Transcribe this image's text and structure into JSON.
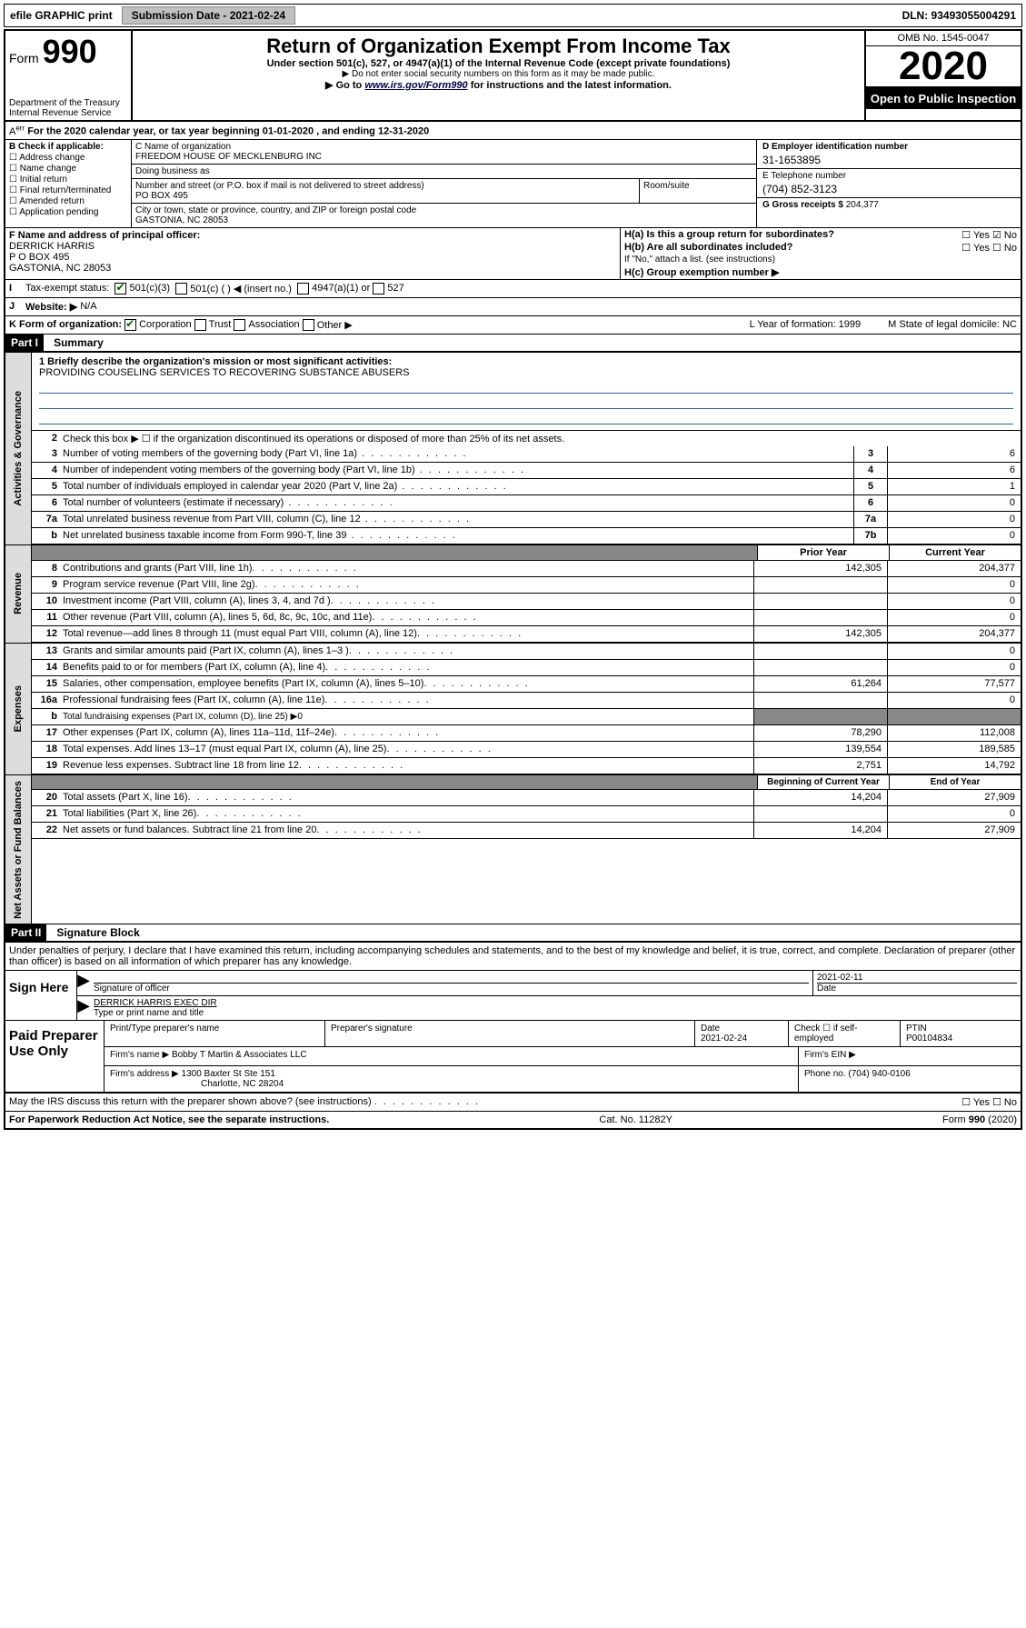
{
  "top_bar": {
    "efile": "efile GRAPHIC print",
    "sub_label": "Submission Date - 2021-02-24",
    "dln": "DLN: 93493055004291"
  },
  "header": {
    "form_label": "Form",
    "form_num": "990",
    "dept": "Department of the Treasury\nInternal Revenue Service",
    "title": "Return of Organization Exempt From Income Tax",
    "subtitle": "Under section 501(c), 527, or 4947(a)(1) of the Internal Revenue Code (except private foundations)",
    "note1": "▶ Do not enter social security numbers on this form as it may be made public.",
    "note2_pre": "▶ Go to ",
    "note2_link": "www.irs.gov/Form990",
    "note2_post": " for instructions and the latest information.",
    "omb": "OMB No. 1545-0047",
    "year": "2020",
    "open": "Open to Public Inspection"
  },
  "row_a": "For the 2020 calendar year, or tax year beginning 01-01-2020   , and ending 12-31-2020",
  "block_b": {
    "title": "B Check if applicable:",
    "items": [
      "Address change",
      "Name change",
      "Initial return",
      "Final return/terminated",
      "Amended return",
      "Application pending"
    ]
  },
  "block_c": {
    "name_label": "C Name of organization",
    "name": "FREEDOM HOUSE OF MECKLENBURG INC",
    "dba_label": "Doing business as",
    "dba": "",
    "addr_label": "Number and street (or P.O. box if mail is not delivered to street address)",
    "room_label": "Room/suite",
    "addr": "PO BOX 495",
    "city_label": "City or town, state or province, country, and ZIP or foreign postal code",
    "city": "GASTONIA, NC  28053"
  },
  "block_d": {
    "ein_label": "D Employer identification number",
    "ein": "31-1653895",
    "phone_label": "E Telephone number",
    "phone": "(704) 852-3123",
    "gross_label": "G Gross receipts $",
    "gross": "204,377"
  },
  "block_f": {
    "label": "F  Name and address of principal officer:",
    "name": "DERRICK HARRIS",
    "addr1": "P O BOX 495",
    "addr2": "GASTONIA, NC  28053"
  },
  "block_h": {
    "ha": "H(a)  Is this a group return for subordinates?",
    "hb": "H(b)  Are all subordinates included?",
    "note": "If \"No,\" attach a list. (see instructions)",
    "hc": "H(c)  Group exemption number ▶"
  },
  "row_i": {
    "label": "Tax-exempt status:",
    "opt1": "501(c)(3)",
    "opt2": "501(c) (  ) ◀ (insert no.)",
    "opt3": "4947(a)(1) or",
    "opt4": "527"
  },
  "row_j": {
    "label": "Website: ▶",
    "value": "N/A"
  },
  "row_k": {
    "label": "K Form of organization:",
    "opts": [
      "Corporation",
      "Trust",
      "Association",
      "Other ▶"
    ],
    "l": "L Year of formation: 1999",
    "m": "M State of legal domicile: NC"
  },
  "part1": {
    "header": "Part I",
    "title": "Summary",
    "mission_label": "1   Briefly describe the organization's mission or most significant activities:",
    "mission": "PROVIDING COUSELING SERVICES TO RECOVERING SUBSTANCE ABUSERS",
    "line2": "Check this box ▶ ☐  if the organization discontinued its operations or disposed of more than 25% of its net assets.",
    "lines_act": [
      {
        "n": "3",
        "t": "Number of voting members of the governing body (Part VI, line 1a)",
        "box": "3",
        "v": "6"
      },
      {
        "n": "4",
        "t": "Number of independent voting members of the governing body (Part VI, line 1b)",
        "box": "4",
        "v": "6"
      },
      {
        "n": "5",
        "t": "Total number of individuals employed in calendar year 2020 (Part V, line 2a)",
        "box": "5",
        "v": "1"
      },
      {
        "n": "6",
        "t": "Total number of volunteers (estimate if necessary)",
        "box": "6",
        "v": "0"
      },
      {
        "n": "7a",
        "t": "Total unrelated business revenue from Part VIII, column (C), line 12",
        "box": "7a",
        "v": "0"
      },
      {
        "n": "b",
        "t": "Net unrelated business taxable income from Form 990-T, line 39",
        "box": "7b",
        "v": "0"
      }
    ],
    "col1": "Prior Year",
    "col2": "Current Year",
    "revenue": [
      {
        "n": "8",
        "t": "Contributions and grants (Part VIII, line 1h)",
        "c1": "142,305",
        "c2": "204,377"
      },
      {
        "n": "9",
        "t": "Program service revenue (Part VIII, line 2g)",
        "c1": "",
        "c2": "0"
      },
      {
        "n": "10",
        "t": "Investment income (Part VIII, column (A), lines 3, 4, and 7d )",
        "c1": "",
        "c2": "0"
      },
      {
        "n": "11",
        "t": "Other revenue (Part VIII, column (A), lines 5, 6d, 8c, 9c, 10c, and 11e)",
        "c1": "",
        "c2": "0"
      },
      {
        "n": "12",
        "t": "Total revenue—add lines 8 through 11 (must equal Part VIII, column (A), line 12)",
        "c1": "142,305",
        "c2": "204,377"
      }
    ],
    "expenses": [
      {
        "n": "13",
        "t": "Grants and similar amounts paid (Part IX, column (A), lines 1–3 )",
        "c1": "",
        "c2": "0"
      },
      {
        "n": "14",
        "t": "Benefits paid to or for members (Part IX, column (A), line 4)",
        "c1": "",
        "c2": "0"
      },
      {
        "n": "15",
        "t": "Salaries, other compensation, employee benefits (Part IX, column (A), lines 5–10)",
        "c1": "61,264",
        "c2": "77,577"
      },
      {
        "n": "16a",
        "t": "Professional fundraising fees (Part IX, column (A), line 11e)",
        "c1": "",
        "c2": "0"
      },
      {
        "n": "b",
        "t": "Total fundraising expenses (Part IX, column (D), line 25) ▶0",
        "c1": "—",
        "c2": "—"
      },
      {
        "n": "17",
        "t": "Other expenses (Part IX, column (A), lines 11a–11d, 11f–24e)",
        "c1": "78,290",
        "c2": "112,008"
      },
      {
        "n": "18",
        "t": "Total expenses. Add lines 13–17 (must equal Part IX, column (A), line 25)",
        "c1": "139,554",
        "c2": "189,585"
      },
      {
        "n": "19",
        "t": "Revenue less expenses. Subtract line 18 from line 12",
        "c1": "2,751",
        "c2": "14,792"
      }
    ],
    "col1b": "Beginning of Current Year",
    "col2b": "End of Year",
    "netassets": [
      {
        "n": "20",
        "t": "Total assets (Part X, line 16)",
        "c1": "14,204",
        "c2": "27,909"
      },
      {
        "n": "21",
        "t": "Total liabilities (Part X, line 26)",
        "c1": "",
        "c2": "0"
      },
      {
        "n": "22",
        "t": "Net assets or fund balances. Subtract line 21 from line 20",
        "c1": "14,204",
        "c2": "27,909"
      }
    ]
  },
  "part2": {
    "header": "Part II",
    "title": "Signature Block",
    "declaration": "Under penalties of perjury, I declare that I have examined this return, including accompanying schedules and statements, and to the best of my knowledge and belief, it is true, correct, and complete. Declaration of preparer (other than officer) is based on all information of which preparer has any knowledge."
  },
  "sign": {
    "label": "Sign Here",
    "sig_label": "Signature of officer",
    "date": "2021-02-11",
    "date_label": "Date",
    "name": "DERRICK HARRIS EXEC DIR",
    "name_label": "Type or print name and title"
  },
  "prep": {
    "label": "Paid Preparer Use Only",
    "h1": "Print/Type preparer's name",
    "h2": "Preparer's signature",
    "h3": "Date",
    "date": "2021-02-24",
    "h4": "Check ☐ if self-employed",
    "h5": "PTIN",
    "ptin": "P00104834",
    "firm_label": "Firm's name    ▶",
    "firm": "Bobby T Martin & Associates LLC",
    "ein_label": "Firm's EIN ▶",
    "addr_label": "Firm's address ▶",
    "addr": "1300 Baxter St Ste 151",
    "city": "Charlotte, NC  28204",
    "phone_label": "Phone no.",
    "phone": "(704) 940-0106"
  },
  "footer": {
    "discuss": "May the IRS discuss this return with the preparer shown above? (see instructions)",
    "paperwork": "For Paperwork Reduction Act Notice, see the separate instructions.",
    "cat": "Cat. No. 11282Y",
    "form": "Form 990 (2020)"
  }
}
